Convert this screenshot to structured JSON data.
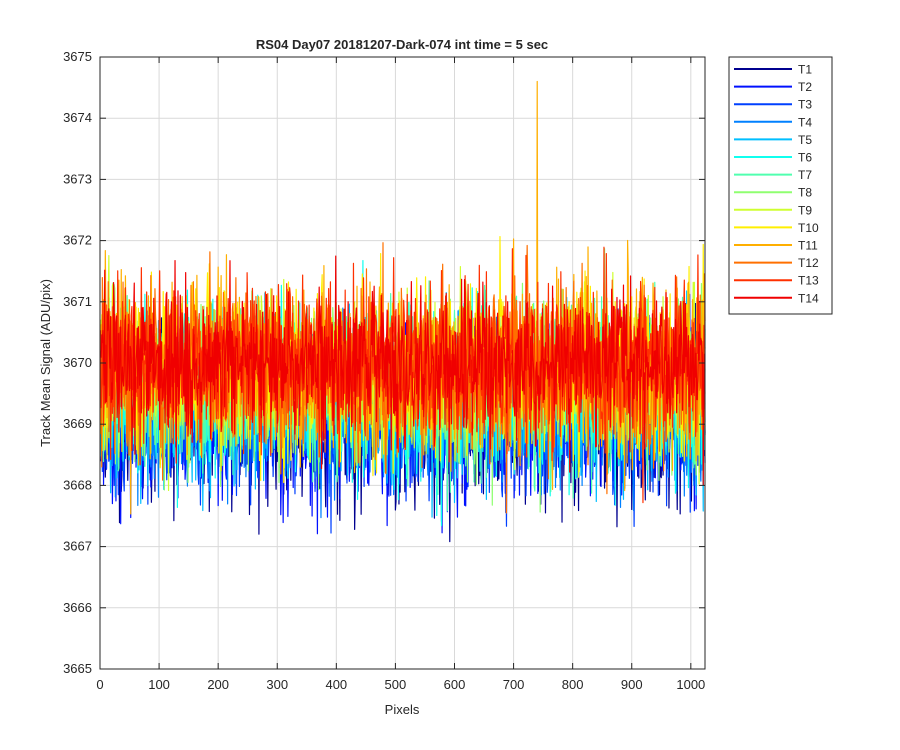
{
  "chart_data": {
    "type": "line",
    "title": "RS04 Day07 20181207-Dark-074 int time = 5 sec",
    "xlabel": "Pixels",
    "ylabel": "Track Mean Signal (ADU/pix)",
    "xlim": [
      0,
      1024
    ],
    "ylim": [
      3665,
      3675
    ],
    "x_ticks": [
      0,
      100,
      200,
      300,
      400,
      500,
      600,
      700,
      800,
      900,
      1000
    ],
    "y_ticks": [
      3665,
      3666,
      3667,
      3668,
      3669,
      3670,
      3671,
      3672,
      3673,
      3674,
      3675
    ],
    "grid": true,
    "legend_position": "outside-top-right",
    "x_range": [
      1,
      1024
    ],
    "series_summary": "14 noisy track traces fluctuating roughly between 3666 and 3673 ADU/pix",
    "series": [
      {
        "name": "T1",
        "color": "#00008F",
        "mean": 3669.0,
        "spread": 0.85,
        "seed": 11
      },
      {
        "name": "T2",
        "color": "#0010FF",
        "mean": 3669.1,
        "spread": 0.85,
        "seed": 23
      },
      {
        "name": "T3",
        "color": "#0040FF",
        "mean": 3669.2,
        "spread": 0.85,
        "seed": 37
      },
      {
        "name": "T4",
        "color": "#0080FF",
        "mean": 3669.3,
        "spread": 0.85,
        "seed": 41
      },
      {
        "name": "T5",
        "color": "#00BFFF",
        "mean": 3669.4,
        "spread": 0.85,
        "seed": 53
      },
      {
        "name": "T6",
        "color": "#10FFEF",
        "mean": 3669.5,
        "spread": 0.85,
        "seed": 67
      },
      {
        "name": "T7",
        "color": "#50FFAF",
        "mean": 3669.6,
        "spread": 0.85,
        "seed": 71
      },
      {
        "name": "T8",
        "color": "#8FFF70",
        "mean": 3669.7,
        "spread": 0.85,
        "seed": 83
      },
      {
        "name": "T9",
        "color": "#CFFF30",
        "mean": 3669.8,
        "spread": 0.85,
        "seed": 97
      },
      {
        "name": "T10",
        "color": "#FFEF00",
        "mean": 3669.9,
        "spread": 0.9,
        "seed": 101
      },
      {
        "name": "T11",
        "color": "#FFAF00",
        "mean": 3669.9,
        "spread": 0.9,
        "seed": 113,
        "peak": {
          "x": 740,
          "y": 3674.6
        }
      },
      {
        "name": "T12",
        "color": "#FF7000",
        "mean": 3669.9,
        "spread": 0.9,
        "seed": 127
      },
      {
        "name": "T13",
        "color": "#FF3000",
        "mean": 3670.0,
        "spread": 0.85,
        "seed": 131
      },
      {
        "name": "T14",
        "color": "#F00000",
        "mean": 3669.95,
        "spread": 0.8,
        "seed": 149
      }
    ]
  }
}
